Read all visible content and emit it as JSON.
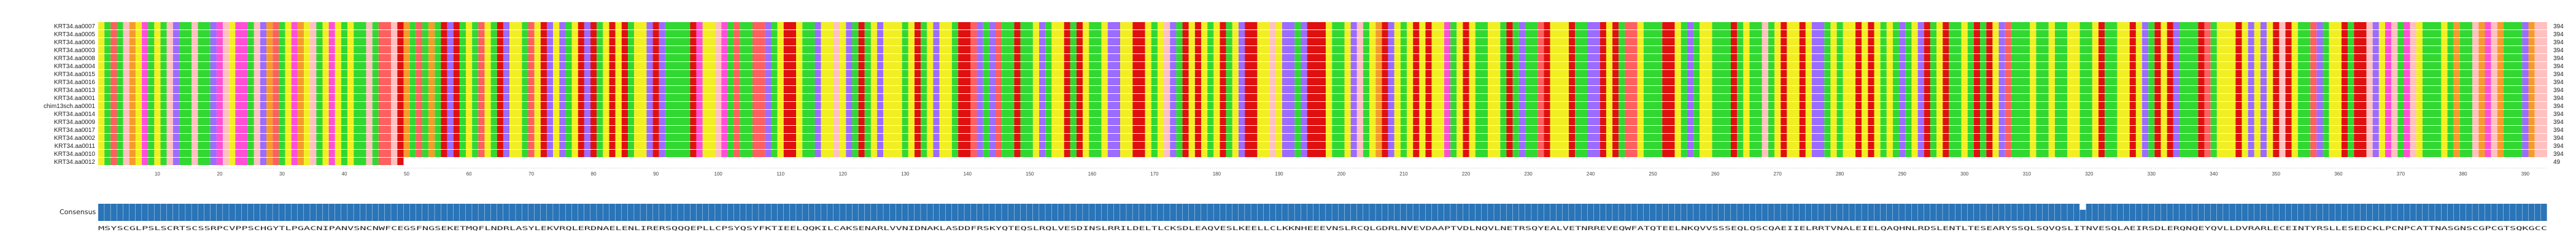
{
  "sequence_names": [
    "KRT34.aa0007",
    "KRT34.aa0005",
    "KRT34.aa0006",
    "KRT34.aa0003",
    "KRT34.aa0008",
    "KRT34.aa0004",
    "KRT34.aa0015",
    "KRT34.aa0016",
    "KRT34.aa0013",
    "KRT34.aa0001",
    "chim13sch.aa0001",
    "KRT34.aa0014",
    "KRT34.aa0009",
    "KRT34.aa0017",
    "KRT34.aa0002",
    "KRT34.aa0011",
    "KRT34.aa0010",
    "KRT34.aa0012"
  ],
  "row_lengths": [
    394,
    394,
    394,
    394,
    394,
    394,
    394,
    394,
    394,
    394,
    394,
    394,
    394,
    394,
    394,
    394,
    394,
    49
  ],
  "consensus_label": "Consensus",
  "consensus_sequence": "MSYSCGLPSLSCRTSCSSRPCVPPSCHGYTLPGACNIPANVSNCNWFCEGSFNGSEKETMQFLNDRLASYLEKVRQLERDNAELENLIRERSQQQEPLLCPSYQSYFKTIEELQQKILCAKSENARLVVNIDNAKLASDDFRSKYQTEQSLRQLVESDINSLRRILDELTLCKSDLEAQVESLKEELLCLKKNHEEEVNSLRCQLGDRLNVEVDAAPTVDLNQVLNETRSQYEALVETNRREVEQWFATQTEELNKQVVSSSEQLQSCQAEIIELRRTVNALEIELQAQHNLRDSLENTLTESEARYSSQLSQVQSLITNVESQLAEIRSDLERQNQEYQVLLDVRARLECEINTYRSLLESEDCKLPCNPCATTNASGNSCGPCGTSQKGCC",
  "tick_labels": [
    "10",
    "20",
    "30",
    "40",
    "50",
    "60",
    "70",
    "80",
    "90",
    "100",
    "110",
    "120",
    "130",
    "140",
    "150",
    "160",
    "170",
    "180",
    "190",
    "200",
    "210",
    "220",
    "230",
    "240",
    "250",
    "260",
    "270",
    "280",
    "290",
    "300",
    "310",
    "320",
    "330",
    "340",
    "350",
    "360",
    "370",
    "380",
    "390"
  ],
  "colors": {
    "background": "#ffffff",
    "consensus_bar": "#2a74b8",
    "consensus_bar_border": "#1d5a92",
    "name_text": "#222222",
    "residue_palette": {
      "hydrophobic": "#f1ef24",
      "aromatic": "#ff5f5f",
      "positive": "#9b6cff",
      "negative": "#e01010",
      "polar": "#32d832",
      "special_P": "#ff4fd6",
      "special_G": "#f59b2c",
      "cysteine": "#ffc0c0",
      "other": "#6b5dd6",
      "gap": "#ffffff"
    }
  }
}
